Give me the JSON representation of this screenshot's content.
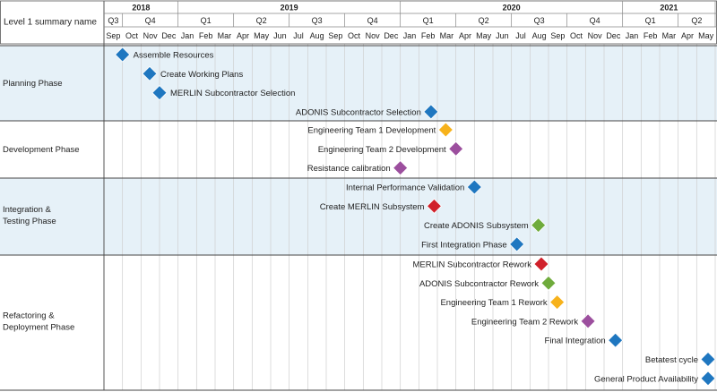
{
  "chart_data": {
    "type": "timeline",
    "corner_label": "Level 1 summary name",
    "years": [
      "2018",
      "2019",
      "2020",
      "2021"
    ],
    "quarters": [
      "Q3",
      "Q4",
      "Q1",
      "Q2",
      "Q3",
      "Q4",
      "Q1",
      "Q2",
      "Q3",
      "Q4",
      "Q1",
      "Q2"
    ],
    "months": [
      "Sep",
      "Oct",
      "Nov",
      "Dec",
      "Jan",
      "Feb",
      "Mar",
      "Apr",
      "May",
      "Jun",
      "Jul",
      "Aug",
      "Sep",
      "Oct",
      "Nov",
      "Dec",
      "Jan",
      "Feb",
      "Mar",
      "Apr",
      "May",
      "Jun",
      "Jul",
      "Aug",
      "Sep",
      "Oct",
      "Nov",
      "Dec",
      "Jan",
      "Feb",
      "Mar",
      "Apr",
      "May"
    ],
    "x_range": [
      "2018-09",
      "2021-05"
    ],
    "colors": {
      "blue": "#1f77c0",
      "orange": "#f7b21b",
      "purple": "#9c4f9e",
      "red": "#d0202a",
      "green": "#6fab3c",
      "band": "#e6f1f8",
      "grid": "#cfcfcf"
    },
    "phases": [
      {
        "name": "Planning Phase",
        "milestones": [
          {
            "label": "Assemble Resources",
            "date": "2018-10-01",
            "color": "blue"
          },
          {
            "label": "Create Working Plans",
            "date": "2018-11-15",
            "color": "blue"
          },
          {
            "label": "MERLIN Subcontractor Selection",
            "date": "2018-12-01",
            "color": "blue"
          },
          {
            "label": "ADONIS Subcontractor Selection",
            "date": "2020-02-20",
            "color": "blue"
          }
        ]
      },
      {
        "name": "Development Phase",
        "milestones": [
          {
            "label": "Engineering Team 1 Development",
            "date": "2020-03-15",
            "color": "orange"
          },
          {
            "label": "Engineering Team 2 Development",
            "date": "2020-04-01",
            "color": "purple"
          },
          {
            "label": "Resistance calibration",
            "date": "2020-01-01",
            "color": "purple"
          }
        ]
      },
      {
        "name": "Integration & Testing Phase",
        "milestones": [
          {
            "label": "Internal Performance Validation",
            "date": "2020-05-01",
            "color": "blue"
          },
          {
            "label": "Create MERLIN Subsystem",
            "date": "2020-02-25",
            "color": "red"
          },
          {
            "label": "Create ADONIS Subsystem",
            "date": "2020-08-15",
            "color": "green"
          },
          {
            "label": "First Integration Phase",
            "date": "2020-07-10",
            "color": "blue"
          }
        ]
      },
      {
        "name": "Refactoring & Deployment Phase",
        "milestones": [
          {
            "label": "MERLIN Subcontractor Rework",
            "date": "2020-08-20",
            "color": "red"
          },
          {
            "label": "ADONIS Subcontractor Rework",
            "date": "2020-09-01",
            "color": "green"
          },
          {
            "label": "Engineering Team 1 Rework",
            "date": "2020-09-15",
            "color": "orange"
          },
          {
            "label": "Engineering Team 2 Rework",
            "date": "2020-11-05",
            "color": "purple"
          },
          {
            "label": "Final Integration",
            "date": "2020-12-20",
            "color": "blue"
          },
          {
            "label": "Betatest cycle",
            "date": "2021-05-20",
            "color": "blue"
          },
          {
            "label": "General Product Availability",
            "date": "2021-05-20",
            "color": "blue"
          }
        ]
      }
    ]
  }
}
